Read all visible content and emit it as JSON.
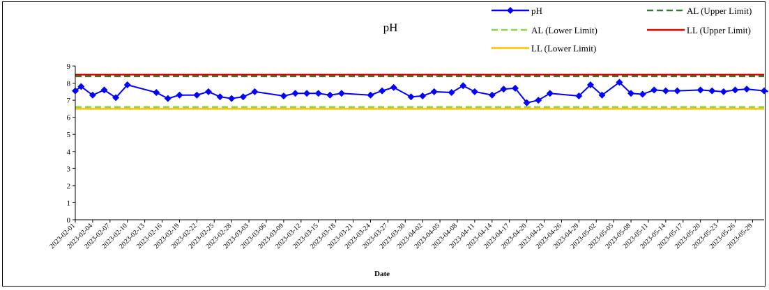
{
  "chart_data": {
    "type": "line",
    "title": "pH",
    "xlabel": "Date",
    "ylabel": "",
    "ylim": [
      0,
      9
    ],
    "yticks": [
      0,
      1,
      2,
      3,
      4,
      5,
      6,
      7,
      8,
      9
    ],
    "x_range": [
      "2023-02-01",
      "2023-05-31"
    ],
    "xticks": [
      "2023-02-01",
      "2023-02-04",
      "2023-02-07",
      "2023-02-10",
      "2023-02-13",
      "2023-02-16",
      "2023-02-19",
      "2023-02-22",
      "2023-02-25",
      "2023-02-28",
      "2023-03-03",
      "2023-03-06",
      "2023-03-09",
      "2023-03-12",
      "2023-03-15",
      "2023-03-18",
      "2023-03-21",
      "2023-03-24",
      "2023-03-27",
      "2023-03-30",
      "2023-04-02",
      "2023-04-05",
      "2023-04-08",
      "2023-04-11",
      "2023-04-14",
      "2023-04-17",
      "2023-04-20",
      "2023-04-23",
      "2023-04-26",
      "2023-04-29",
      "2023-05-02",
      "2023-05-05",
      "2023-05-08",
      "2023-05-11",
      "2023-05-14",
      "2023-05-17",
      "2023-05-20",
      "2023-05-23",
      "2023-05-26",
      "2023-05-29"
    ],
    "grid": false,
    "legend_position": "top-right",
    "series": [
      {
        "name": "pH",
        "color": "#0000ff",
        "marker": "diamond",
        "points": [
          [
            "2023-02-01",
            7.55
          ],
          [
            "2023-02-02",
            7.8
          ],
          [
            "2023-02-04",
            7.3
          ],
          [
            "2023-02-06",
            7.6
          ],
          [
            "2023-02-08",
            7.15
          ],
          [
            "2023-02-10",
            7.9
          ],
          [
            "2023-02-15",
            7.45
          ],
          [
            "2023-02-17",
            7.1
          ],
          [
            "2023-02-19",
            7.3
          ],
          [
            "2023-02-22",
            7.3
          ],
          [
            "2023-02-24",
            7.5
          ],
          [
            "2023-02-26",
            7.2
          ],
          [
            "2023-02-28",
            7.1
          ],
          [
            "2023-03-02",
            7.2
          ],
          [
            "2023-03-04",
            7.5
          ],
          [
            "2023-03-09",
            7.25
          ],
          [
            "2023-03-11",
            7.4
          ],
          [
            "2023-03-13",
            7.4
          ],
          [
            "2023-03-15",
            7.4
          ],
          [
            "2023-03-17",
            7.3
          ],
          [
            "2023-03-19",
            7.4
          ],
          [
            "2023-03-24",
            7.3
          ],
          [
            "2023-03-26",
            7.55
          ],
          [
            "2023-03-28",
            7.75
          ],
          [
            "2023-03-31",
            7.2
          ],
          [
            "2023-04-02",
            7.25
          ],
          [
            "2023-04-04",
            7.5
          ],
          [
            "2023-04-07",
            7.45
          ],
          [
            "2023-04-09",
            7.85
          ],
          [
            "2023-04-11",
            7.5
          ],
          [
            "2023-04-14",
            7.3
          ],
          [
            "2023-04-16",
            7.65
          ],
          [
            "2023-04-18",
            7.7
          ],
          [
            "2023-04-20",
            6.85
          ],
          [
            "2023-04-22",
            7.0
          ],
          [
            "2023-04-24",
            7.4
          ],
          [
            "2023-04-29",
            7.25
          ],
          [
            "2023-05-01",
            7.9
          ],
          [
            "2023-05-03",
            7.3
          ],
          [
            "2023-05-06",
            8.05
          ],
          [
            "2023-05-08",
            7.4
          ],
          [
            "2023-05-10",
            7.35
          ],
          [
            "2023-05-12",
            7.6
          ],
          [
            "2023-05-14",
            7.55
          ],
          [
            "2023-05-16",
            7.55
          ],
          [
            "2023-05-20",
            7.6
          ],
          [
            "2023-05-22",
            7.55
          ],
          [
            "2023-05-24",
            7.5
          ],
          [
            "2023-05-26",
            7.6
          ],
          [
            "2023-05-28",
            7.65
          ],
          [
            "2023-05-31",
            7.55
          ],
          [
            "2023-06-03",
            7.4
          ]
        ]
      },
      {
        "name": "AL (Upper Limit)",
        "color": "#2e7d32",
        "dash": "dashed",
        "constant": 8.4
      },
      {
        "name": "AL (Lower Limit)",
        "color": "#92d050",
        "dash": "dashed",
        "constant": 6.6
      },
      {
        "name": "LL (Upper Limit)",
        "color": "#e00000",
        "dash": "solid",
        "constant": 8.5
      },
      {
        "name": "LL (Lower Limit)",
        "color": "#f5c400",
        "dash": "solid",
        "constant": 6.5
      }
    ]
  }
}
